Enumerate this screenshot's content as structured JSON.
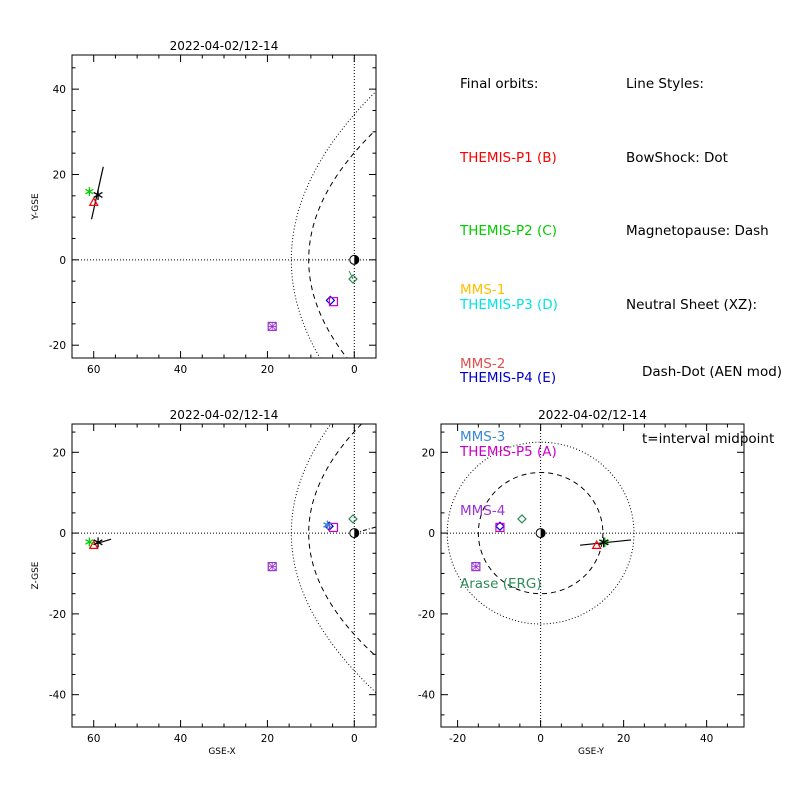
{
  "legend": {
    "orbits_title": "Final orbits:",
    "orbits": [
      {
        "label": "THEMIS-P1 (B)",
        "color": "#ff0000"
      },
      {
        "label": "THEMIS-P2 (C)",
        "color": "#00cc00"
      },
      {
        "label": "THEMIS-P3 (D)",
        "color": "#00e5e5"
      },
      {
        "label": "THEMIS-P4 (E)",
        "color": "#0000cc"
      },
      {
        "label": "THEMIS-P5 (A)",
        "color": "#cc00cc"
      }
    ],
    "styles_title": "Line Styles:",
    "styles": [
      "BowShock: Dot",
      "Magnetopause: Dash",
      "Neutral Sheet (XZ):"
    ],
    "styles_sub": [
      "Dash-Dot (AEN mod)",
      "t=interval midpoint"
    ],
    "missions": [
      {
        "label": "MMS-1",
        "color": "#ffbf00"
      },
      {
        "label": "MMS-2",
        "color": "#e05050"
      },
      {
        "label": "MMS-3",
        "color": "#3a87d6"
      },
      {
        "label": "MMS-4",
        "color": "#9a32d6"
      },
      {
        "label": "Arase (ERG)",
        "color": "#2e8b57"
      }
    ]
  },
  "chart_data": [
    {
      "type": "scatter",
      "title": "2022-04-02/12-14",
      "xlabel": "",
      "ylabel": "Y-GSE",
      "xlim": [
        65,
        -5
      ],
      "ylim": [
        -23,
        48
      ],
      "x_ticks": [
        60,
        40,
        20,
        0
      ],
      "y_ticks": [
        -20,
        0,
        20,
        40
      ],
      "y_tick_labels": [
        "-20",
        "0",
        "20",
        "40"
      ],
      "points": [
        {
          "name": "THEMIS-P1 (B)",
          "x": 60.0,
          "y": 13.5,
          "symbol": "triangle",
          "color": "#ff0000"
        },
        {
          "name": "THEMIS-P2 (C)",
          "x": 61.0,
          "y": 16.0,
          "symbol": "asterisk",
          "color": "#00cc00"
        },
        {
          "name": "THEMIS-P4 (E)",
          "x": 5.5,
          "y": -9.5,
          "symbol": "diamond",
          "color": "#0000cc"
        },
        {
          "name": "THEMIS-P5 (A)",
          "x": 4.8,
          "y": -9.8,
          "symbol": "square",
          "color": "#cc00cc"
        },
        {
          "name": "MMS-4",
          "x": 18.9,
          "y": -15.6,
          "symbol": "square-x",
          "color": "#9a32d6"
        },
        {
          "name": "Arase (ERG)",
          "x": 0.3,
          "y": -4.5,
          "symbol": "diamond",
          "color": "#2e8b57"
        },
        {
          "name": "",
          "x": 59.0,
          "y": 15.2,
          "symbol": "star",
          "color": "#000000"
        }
      ],
      "neutral_sheet": [
        [
          60.5,
          9.5
        ],
        [
          57.8,
          21.8
        ]
      ],
      "arase_track": [
        [
          0.3,
          -4.5
        ],
        [
          1.2,
          -2.6
        ]
      ],
      "grid": false,
      "bow_shock": "dotted",
      "magnetopause": "dashed"
    },
    {
      "type": "scatter",
      "title": "2022-04-02/12-14",
      "xlabel": "GSE-X",
      "ylabel": "Z-GSE",
      "xlim": [
        65,
        -5
      ],
      "ylim": [
        -48,
        27
      ],
      "x_ticks": [
        60,
        40,
        20,
        0
      ],
      "y_ticks": [
        -40,
        -20,
        0,
        20
      ],
      "y_tick_labels": [
        "-40",
        "-20",
        "0",
        "20"
      ],
      "points": [
        {
          "name": "THEMIS-P1 (B)",
          "x": 60.0,
          "y": -3.0,
          "symbol": "triangle",
          "color": "#ff0000"
        },
        {
          "name": "THEMIS-P2 (C)",
          "x": 61.0,
          "y": -2.2,
          "symbol": "asterisk",
          "color": "#00cc00"
        },
        {
          "name": "THEMIS-P4 (E)",
          "x": 5.8,
          "y": 1.7,
          "symbol": "diamond",
          "color": "#0000cc"
        },
        {
          "name": "THEMIS-P5 (A)",
          "x": 4.8,
          "y": 1.4,
          "symbol": "square",
          "color": "#cc00cc"
        },
        {
          "name": "MMS-3",
          "x": 6.2,
          "y": 2.0,
          "symbol": "asterisk",
          "color": "#3a87d6"
        },
        {
          "name": "MMS-4",
          "x": 18.9,
          "y": -8.3,
          "symbol": "square-x",
          "color": "#9a32d6"
        },
        {
          "name": "Arase (ERG)",
          "x": 0.3,
          "y": 3.5,
          "symbol": "diamond",
          "color": "#2e8b57"
        },
        {
          "name": "",
          "x": 59.0,
          "y": -2.3,
          "symbol": "star",
          "color": "#000000"
        }
      ],
      "neutral_sheet": [
        [
          60.0,
          -2.8
        ],
        [
          56.0,
          -1.5
        ]
      ],
      "earth_dashdot": [
        [
          0.0,
          0.0
        ],
        [
          -5.0,
          1.5
        ]
      ],
      "grid": false,
      "bow_shock": "dotted",
      "magnetopause": "dashed"
    },
    {
      "type": "scatter",
      "title": "2022-04-02/12-14",
      "xlabel": "GSE-Y",
      "ylabel": "",
      "xlim": [
        -24,
        49
      ],
      "ylim": [
        -48,
        27
      ],
      "x_ticks": [
        -20,
        0,
        20,
        40
      ],
      "y_ticks": [
        -40,
        -20,
        0,
        20
      ],
      "y_tick_labels": [
        "-40",
        "-20",
        "0",
        "20"
      ],
      "points": [
        {
          "name": "THEMIS-P1 (B)",
          "x": 13.5,
          "y": -3.0,
          "symbol": "triangle",
          "color": "#ff0000"
        },
        {
          "name": "THEMIS-P2 (C)",
          "x": 15.5,
          "y": -2.3,
          "symbol": "asterisk",
          "color": "#00cc00"
        },
        {
          "name": "THEMIS-P4 (E)",
          "x": -9.8,
          "y": 1.7,
          "symbol": "diamond",
          "color": "#0000cc"
        },
        {
          "name": "THEMIS-P5 (A)",
          "x": -9.8,
          "y": 1.4,
          "symbol": "square",
          "color": "#cc00cc"
        },
        {
          "name": "MMS-4",
          "x": -15.6,
          "y": -8.3,
          "symbol": "square-x",
          "color": "#9a32d6"
        },
        {
          "name": "Arase (ERG)",
          "x": -4.5,
          "y": 3.5,
          "symbol": "diamond",
          "color": "#2e8b57"
        },
        {
          "name": "",
          "x": 15.2,
          "y": -2.3,
          "symbol": "star",
          "color": "#000000"
        }
      ],
      "neutral_sheet": [
        [
          9.5,
          -3.0
        ],
        [
          21.8,
          -1.7
        ]
      ],
      "grid": false,
      "bow_shock": "dotted circle radius 22.5",
      "magnetopause": "dashed circle radius 15"
    }
  ]
}
